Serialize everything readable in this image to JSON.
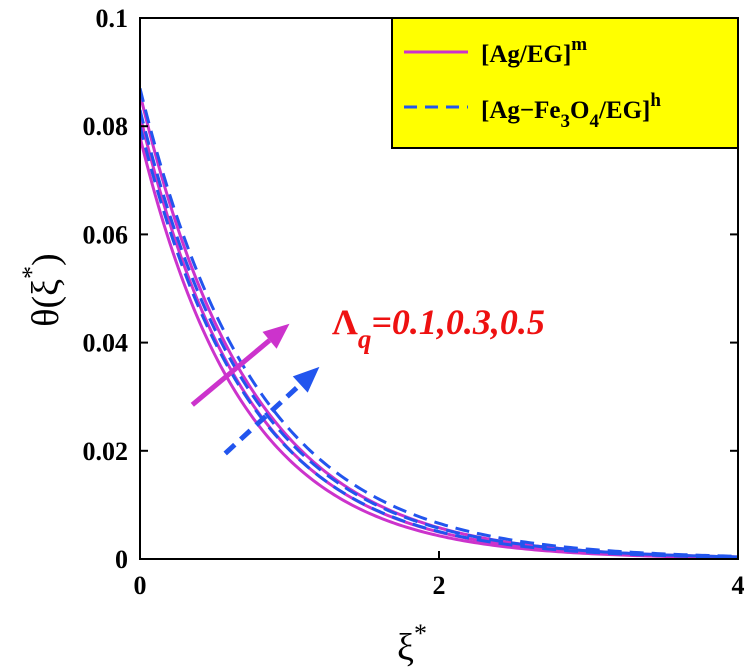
{
  "chart_data": {
    "type": "line",
    "xlabel": {
      "base": "ξ",
      "sup": "*"
    },
    "ylabel": {
      "pre": "θ(ξ",
      "sup": "*",
      "post": ")"
    },
    "xlim": [
      0,
      4
    ],
    "ylim": [
      0,
      0.1
    ],
    "xticks": [
      {
        "value": 0,
        "label": "0"
      },
      {
        "value": 2,
        "label": "2"
      },
      {
        "value": 4,
        "label": "4"
      }
    ],
    "yticks": [
      {
        "value": 0,
        "label": "0"
      },
      {
        "value": 0.02,
        "label": "0.02"
      },
      {
        "value": 0.04,
        "label": "0.04"
      },
      {
        "value": 0.06,
        "label": "0.06"
      },
      {
        "value": 0.08,
        "label": "0.08"
      },
      {
        "value": 0.1,
        "label": "0.1"
      }
    ],
    "grid": false,
    "legend_position": "top-right",
    "legend": [
      {
        "style": "solid",
        "color": "#cc33cc",
        "parts": [
          {
            "t": "[Ag/EG]",
            "s": "normal"
          },
          {
            "t": "m",
            "s": "sup"
          }
        ]
      },
      {
        "style": "dashed",
        "color": "#2255ee",
        "parts": [
          {
            "t": "[Ag−Fe",
            "s": "normal"
          },
          {
            "t": "3",
            "s": "sub"
          },
          {
            "t": "O",
            "s": "normal"
          },
          {
            "t": "4",
            "s": "sub"
          },
          {
            "t": "/EG]",
            "s": "normal"
          },
          {
            "t": "h",
            "s": "sup"
          }
        ]
      }
    ],
    "series": [
      {
        "style": "solid",
        "color": "#cc33cc",
        "x0": 0.078,
        "decay": 1.45
      },
      {
        "style": "solid",
        "color": "#cc33cc",
        "x0": 0.082,
        "decay": 1.4
      },
      {
        "style": "solid",
        "color": "#cc33cc",
        "x0": 0.086,
        "decay": 1.35
      },
      {
        "style": "dashed",
        "color": "#2255ee",
        "x0": 0.08,
        "decay": 1.38
      },
      {
        "style": "dashed",
        "color": "#2255ee",
        "x0": 0.083,
        "decay": 1.34
      },
      {
        "style": "dashed",
        "color": "#2255ee",
        "x0": 0.087,
        "decay": 1.29
      }
    ],
    "annotation": {
      "greek": "Λ",
      "sub": "q",
      "values": "=0.1,0.3,0.5",
      "color": "#ee1111"
    },
    "arrows": [
      {
        "name": "arrow-solid-increasing",
        "color": "#cc33cc",
        "style": "solid",
        "from": [
          0.35,
          0.0285
        ],
        "to": [
          1.0,
          0.0435
        ]
      },
      {
        "name": "arrow-dashed-increasing",
        "color": "#2255ee",
        "style": "dashed",
        "from": [
          0.57,
          0.0195
        ],
        "to": [
          1.2,
          0.0355
        ]
      }
    ],
    "colors": {
      "legend_bg": "#ffff00",
      "magenta": "#cc33cc",
      "blue": "#2255ee",
      "annotation": "#ee1111"
    }
  }
}
